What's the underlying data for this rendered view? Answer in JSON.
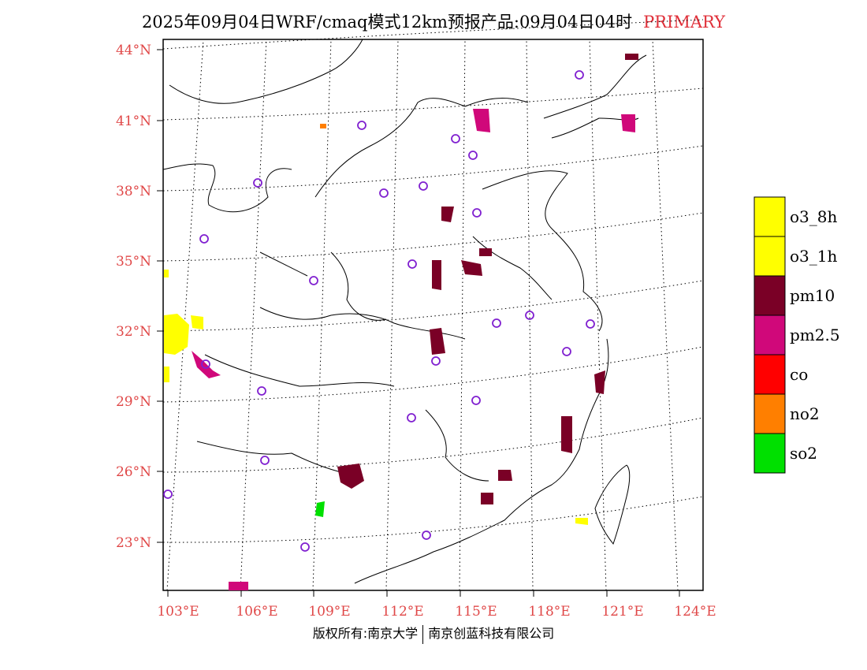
{
  "header": {
    "title": "2025年09月04日WRF/cmaq模式12km预报产品:09月04日04时",
    "tag": "PRIMARY"
  },
  "map": {
    "lat_labels": [
      "44°N",
      "41°N",
      "38°N",
      "35°N",
      "32°N",
      "29°N",
      "26°N",
      "23°N"
    ],
    "lon_labels": [
      "103°E",
      "106°E",
      "109°E",
      "112°E",
      "115°E",
      "118°E",
      "121°E",
      "124°E"
    ],
    "label_color": "#e04848"
  },
  "legend": {
    "items": [
      {
        "label": "o3_8h",
        "color": "#ffff00"
      },
      {
        "label": "o3_1h",
        "color": "#ffff00"
      },
      {
        "label": "pm10",
        "color": "#7a0026"
      },
      {
        "label": "pm2.5",
        "color": "#d0087a"
      },
      {
        "label": "co",
        "color": "#ff0000"
      },
      {
        "label": "no2",
        "color": "#ff7f00"
      },
      {
        "label": "so2",
        "color": "#00e000"
      }
    ]
  },
  "footer": {
    "left": "版权所有:南京大学",
    "right": "南京创蓝科技有限公司"
  }
}
